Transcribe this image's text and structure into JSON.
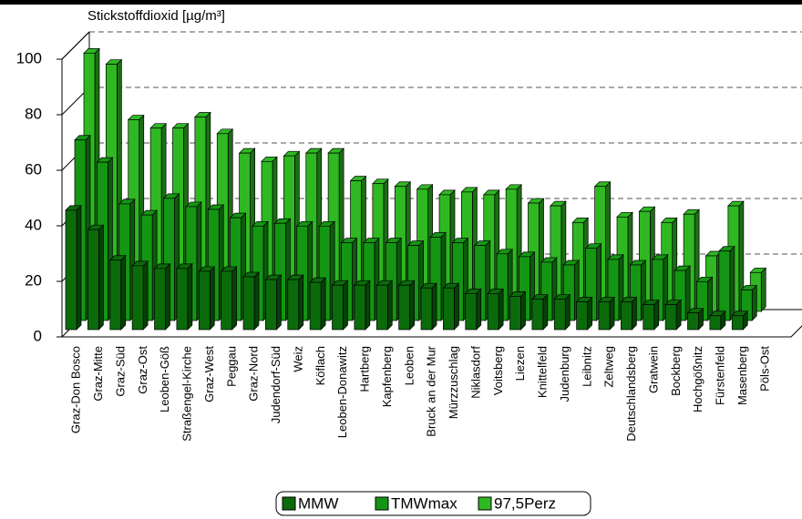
{
  "chart_data": {
    "type": "bar3d",
    "title": "Stickstoffdioxid [µg/m³]",
    "categories": [
      "Graz-Don Bosco",
      "Graz-Mitte",
      "Graz-Süd",
      "Graz-Ost",
      "Leoben-Göß",
      "Straßengel-Kirche",
      "Graz-West",
      "Peggau",
      "Graz-Nord",
      "Judendorf-Süd",
      "Weiz",
      "Köflach",
      "Leoben-Donawitz",
      "Hartberg",
      "Kapfenberg",
      "Leoben",
      "Bruck an der Mur",
      "Mürzzuschlag",
      "Niklasdorf",
      "Voitsberg",
      "Liezen",
      "Knittelfeld",
      "Judenburg",
      "Leibnitz",
      "Zeltweg",
      "Deutschlandsberg",
      "Gratwein",
      "Bockberg",
      "Hochgößnitz",
      "Fürstenfeld",
      "Masenberg",
      "Pöls-Ost"
    ],
    "series": [
      {
        "name": "MMW",
        "color": "#0b6b0b",
        "values": [
          43,
          36,
          25,
          23,
          22,
          22,
          21,
          21,
          19,
          18,
          18,
          17,
          16,
          16,
          16,
          16,
          15,
          15,
          13,
          13,
          12,
          11,
          11,
          10,
          10,
          10,
          9,
          9,
          6,
          5,
          5,
          null
        ]
      },
      {
        "name": "TMWmax",
        "color": "#149614",
        "values": [
          65,
          57,
          42,
          38,
          44,
          41,
          40,
          37,
          34,
          35,
          34,
          34,
          28,
          28,
          28,
          27,
          30,
          28,
          27,
          24,
          23,
          21,
          20,
          26,
          22,
          20,
          22,
          18,
          14,
          25,
          11,
          null
        ]
      },
      {
        "name": "97,5Perz",
        "color": "#2fb822",
        "values": [
          93,
          89,
          69,
          66,
          66,
          70,
          64,
          57,
          54,
          56,
          57,
          57,
          47,
          46,
          45,
          44,
          42,
          43,
          42,
          44,
          39,
          38,
          32,
          45,
          34,
          36,
          32,
          35,
          20,
          38,
          14,
          null
        ]
      }
    ],
    "ylim": [
      0,
      100
    ],
    "yticks": [
      0,
      20,
      40,
      60,
      80,
      100
    ],
    "grid": true
  }
}
